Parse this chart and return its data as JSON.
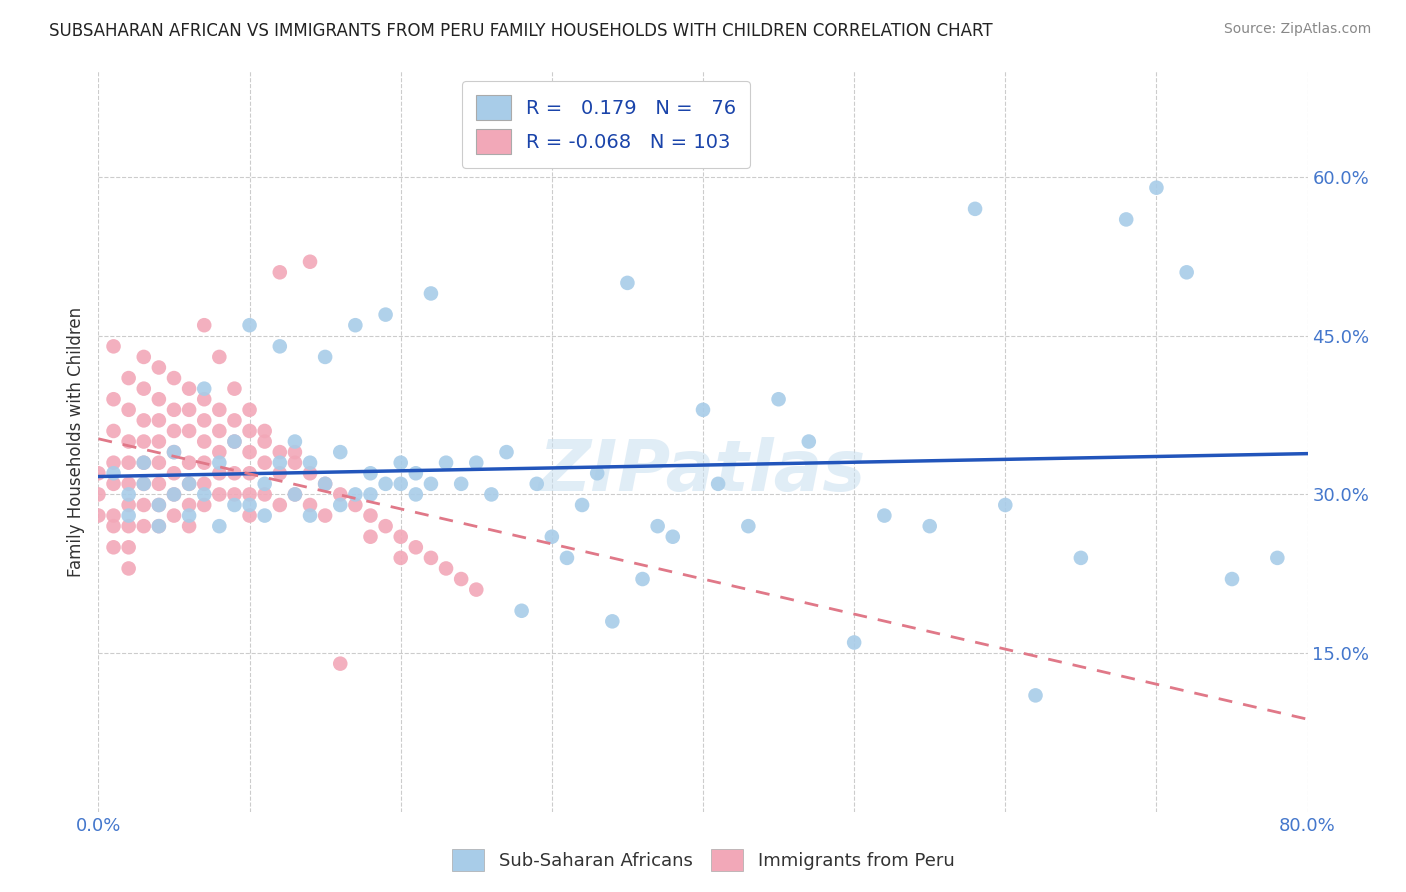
{
  "title": "SUBSAHARAN AFRICAN VS IMMIGRANTS FROM PERU FAMILY HOUSEHOLDS WITH CHILDREN CORRELATION CHART",
  "source": "Source: ZipAtlas.com",
  "ylabel": "Family Households with Children",
  "xlim": [
    0.0,
    0.8
  ],
  "ylim": [
    0.0,
    0.7
  ],
  "xtick_positions": [
    0.0,
    0.1,
    0.2,
    0.3,
    0.4,
    0.5,
    0.6,
    0.7,
    0.8
  ],
  "xticklabels": [
    "0.0%",
    "",
    "",
    "",
    "",
    "",
    "",
    "",
    "80.0%"
  ],
  "yticks_right": [
    0.15,
    0.3,
    0.45,
    0.6
  ],
  "yticklabels_right": [
    "15.0%",
    "30.0%",
    "45.0%",
    "60.0%"
  ],
  "blue_R": 0.179,
  "blue_N": 76,
  "pink_R": -0.068,
  "pink_N": 103,
  "blue_color": "#a8cce8",
  "pink_color": "#f2a8b8",
  "blue_line_color": "#2255bb",
  "pink_line_color": "#e07888",
  "watermark": "ZIPatlas",
  "legend_blue_label": "Sub-Saharan Africans",
  "legend_pink_label": "Immigrants from Peru",
  "blue_x": [
    0.01,
    0.02,
    0.02,
    0.03,
    0.03,
    0.04,
    0.04,
    0.05,
    0.05,
    0.06,
    0.06,
    0.07,
    0.07,
    0.08,
    0.08,
    0.09,
    0.09,
    0.1,
    0.1,
    0.11,
    0.11,
    0.12,
    0.12,
    0.13,
    0.13,
    0.14,
    0.14,
    0.15,
    0.15,
    0.16,
    0.16,
    0.17,
    0.17,
    0.18,
    0.18,
    0.19,
    0.19,
    0.2,
    0.2,
    0.21,
    0.21,
    0.22,
    0.22,
    0.23,
    0.24,
    0.25,
    0.26,
    0.27,
    0.28,
    0.29,
    0.3,
    0.31,
    0.32,
    0.33,
    0.34,
    0.35,
    0.36,
    0.37,
    0.38,
    0.4,
    0.41,
    0.43,
    0.45,
    0.47,
    0.5,
    0.52,
    0.55,
    0.58,
    0.6,
    0.62,
    0.65,
    0.68,
    0.7,
    0.72,
    0.75,
    0.78
  ],
  "blue_y": [
    0.32,
    0.3,
    0.28,
    0.31,
    0.33,
    0.29,
    0.27,
    0.3,
    0.34,
    0.28,
    0.31,
    0.4,
    0.3,
    0.33,
    0.27,
    0.29,
    0.35,
    0.46,
    0.29,
    0.31,
    0.28,
    0.44,
    0.33,
    0.35,
    0.3,
    0.33,
    0.28,
    0.43,
    0.31,
    0.34,
    0.29,
    0.46,
    0.3,
    0.32,
    0.3,
    0.47,
    0.31,
    0.33,
    0.31,
    0.32,
    0.3,
    0.49,
    0.31,
    0.33,
    0.31,
    0.33,
    0.3,
    0.34,
    0.19,
    0.31,
    0.26,
    0.24,
    0.29,
    0.32,
    0.18,
    0.5,
    0.22,
    0.27,
    0.26,
    0.38,
    0.31,
    0.27,
    0.39,
    0.35,
    0.16,
    0.28,
    0.27,
    0.57,
    0.29,
    0.11,
    0.24,
    0.56,
    0.59,
    0.51,
    0.22,
    0.24
  ],
  "pink_x": [
    0.0,
    0.0,
    0.0,
    0.01,
    0.01,
    0.01,
    0.01,
    0.01,
    0.01,
    0.01,
    0.01,
    0.02,
    0.02,
    0.02,
    0.02,
    0.02,
    0.02,
    0.02,
    0.02,
    0.02,
    0.03,
    0.03,
    0.03,
    0.03,
    0.03,
    0.03,
    0.03,
    0.03,
    0.04,
    0.04,
    0.04,
    0.04,
    0.04,
    0.04,
    0.04,
    0.04,
    0.05,
    0.05,
    0.05,
    0.05,
    0.05,
    0.05,
    0.05,
    0.06,
    0.06,
    0.06,
    0.06,
    0.06,
    0.06,
    0.06,
    0.07,
    0.07,
    0.07,
    0.07,
    0.07,
    0.07,
    0.08,
    0.08,
    0.08,
    0.08,
    0.08,
    0.09,
    0.09,
    0.09,
    0.09,
    0.1,
    0.1,
    0.1,
    0.1,
    0.1,
    0.11,
    0.11,
    0.11,
    0.12,
    0.12,
    0.12,
    0.13,
    0.13,
    0.14,
    0.14,
    0.15,
    0.15,
    0.16,
    0.17,
    0.18,
    0.18,
    0.19,
    0.2,
    0.2,
    0.21,
    0.22,
    0.23,
    0.24,
    0.25,
    0.14,
    0.16,
    0.07,
    0.08,
    0.09,
    0.1,
    0.11,
    0.12,
    0.13
  ],
  "pink_y": [
    0.3,
    0.32,
    0.28,
    0.44,
    0.39,
    0.36,
    0.33,
    0.31,
    0.28,
    0.27,
    0.25,
    0.41,
    0.38,
    0.35,
    0.33,
    0.31,
    0.29,
    0.27,
    0.25,
    0.23,
    0.43,
    0.4,
    0.37,
    0.35,
    0.33,
    0.31,
    0.29,
    0.27,
    0.42,
    0.39,
    0.37,
    0.35,
    0.33,
    0.31,
    0.29,
    0.27,
    0.41,
    0.38,
    0.36,
    0.34,
    0.32,
    0.3,
    0.28,
    0.4,
    0.38,
    0.36,
    0.33,
    0.31,
    0.29,
    0.27,
    0.39,
    0.37,
    0.35,
    0.33,
    0.31,
    0.29,
    0.38,
    0.36,
    0.34,
    0.32,
    0.3,
    0.37,
    0.35,
    0.32,
    0.3,
    0.36,
    0.34,
    0.32,
    0.3,
    0.28,
    0.35,
    0.33,
    0.3,
    0.34,
    0.32,
    0.29,
    0.33,
    0.3,
    0.32,
    0.29,
    0.31,
    0.28,
    0.3,
    0.29,
    0.28,
    0.26,
    0.27,
    0.26,
    0.24,
    0.25,
    0.24,
    0.23,
    0.22,
    0.21,
    0.52,
    0.14,
    0.46,
    0.43,
    0.4,
    0.38,
    0.36,
    0.51,
    0.34
  ]
}
